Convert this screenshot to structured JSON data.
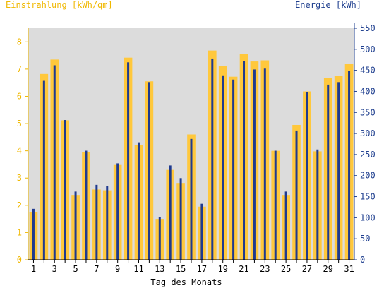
{
  "chart_data": {
    "type": "bar",
    "xlabel": "Tag des Monats",
    "ylabel_left": "Einstrahlung [kWh/qm]",
    "ylabel_right": "Energie [kWh]",
    "ylim_left": [
      0,
      8.5
    ],
    "ylim_right": [
      0,
      550
    ],
    "yticks_left": [
      0,
      1,
      2,
      3,
      4,
      5,
      6,
      7,
      8
    ],
    "yticks_right": [
      0,
      50,
      100,
      150,
      200,
      250,
      300,
      350,
      400,
      450,
      500,
      550
    ],
    "xtick_labels": [
      "1",
      "3",
      "5",
      "7",
      "9",
      "11",
      "13",
      "15",
      "17",
      "19",
      "21",
      "23",
      "25",
      "27",
      "29",
      "31"
    ],
    "grid": false,
    "colors": {
      "plot_background": "#dcdcdc",
      "irradiation_bar": "#ffc83c",
      "energy_bar": "#1f3a8f",
      "left_axis": "#f0b800",
      "right_axis": "#1f3f8f"
    },
    "categories": [
      1,
      2,
      3,
      4,
      5,
      6,
      7,
      8,
      9,
      10,
      11,
      12,
      13,
      14,
      15,
      16,
      17,
      18,
      19,
      20,
      21,
      22,
      23,
      24,
      25,
      26,
      27,
      28,
      29,
      30,
      31
    ],
    "series": [
      {
        "name": "Einstrahlung [kWh/qm]",
        "axis": "left",
        "values": [
          1.75,
          6.82,
          7.35,
          5.12,
          2.38,
          3.95,
          2.58,
          2.55,
          3.48,
          7.42,
          4.2,
          6.55,
          1.5,
          3.3,
          2.82,
          4.6,
          1.95,
          7.68,
          7.12,
          6.72,
          7.55,
          7.28,
          7.32,
          4.0,
          2.38,
          4.95,
          6.18,
          3.98,
          6.68,
          6.75,
          7.18
        ]
      },
      {
        "name": "Energie [kWh]",
        "axis": "right",
        "values": [
          121,
          425,
          462,
          332,
          162,
          259,
          178,
          175,
          229,
          469,
          279,
          422,
          102,
          224,
          194,
          287,
          133,
          478,
          438,
          428,
          472,
          452,
          454,
          259,
          162,
          307,
          399,
          262,
          416,
          422,
          448
        ]
      }
    ]
  }
}
